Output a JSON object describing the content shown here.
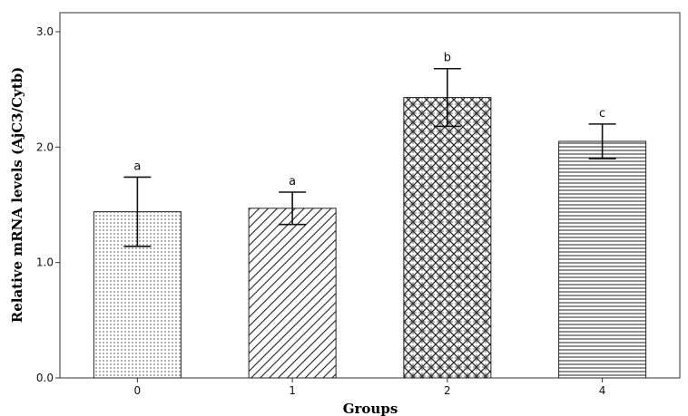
{
  "chart_data": {
    "type": "bar",
    "xlabel": "Groups",
    "ylabel": "Relative mRNA levels (AjC3/Cytb)",
    "categories": [
      "0",
      "1",
      "2",
      "4"
    ],
    "values": [
      1.44,
      1.47,
      2.43,
      2.05
    ],
    "error": [
      0.3,
      0.14,
      0.25,
      0.15
    ],
    "significance": [
      "a",
      "a",
      "b",
      "c"
    ],
    "patterns": [
      "dots",
      "diagonal",
      "crosshatch",
      "horizontal"
    ],
    "ylim": [
      0,
      3.0
    ],
    "yticks": [
      0.0,
      1.0,
      2.0,
      3.0
    ],
    "ytick_labels": [
      "0.0",
      "1.0",
      "2.0",
      "3.0"
    ],
    "grid": false,
    "legend": "none",
    "colors": {
      "bar_stroke": "#222222",
      "pattern": "#333333",
      "background": "#ffffff"
    }
  }
}
